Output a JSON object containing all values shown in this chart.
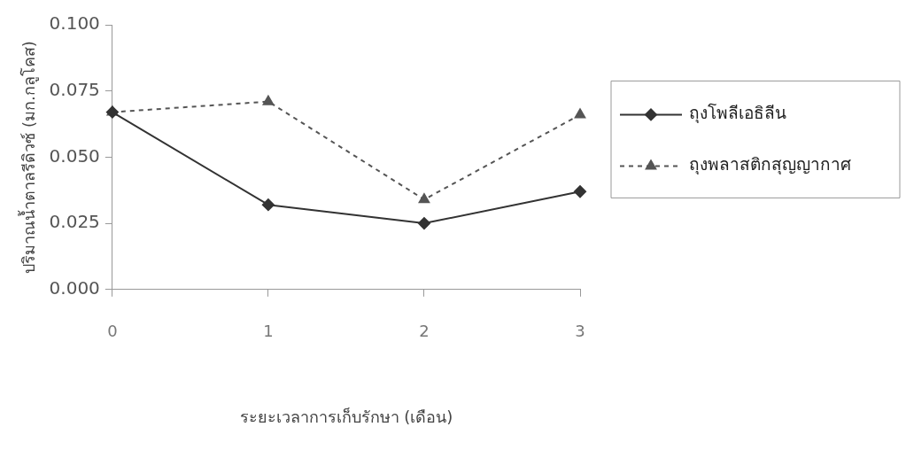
{
  "chart_data": {
    "type": "line",
    "xlabel": "ระยะเวลาการเก็บรักษา (เดือน)",
    "ylabel": "ปริมาณน้ำตาลรีดิวซ์ (มก.กลูโคส)",
    "categories": [
      "0",
      "1",
      "2",
      "3"
    ],
    "series": [
      {
        "name": "ถุงโพลีเอธิลีน",
        "color": "#333333",
        "values": [
          0.067,
          0.032,
          0.025,
          0.037
        ],
        "marker": "diamond",
        "line_style": "solid"
      },
      {
        "name": "ถุงพลาสติกสุญญากาศ",
        "color": "#555555",
        "values": [
          0.067,
          0.071,
          0.034,
          0.066
        ],
        "marker": "triangle",
        "line_style": "dashed"
      }
    ],
    "ylim": [
      0,
      0.1
    ],
    "yticks": [
      {
        "value": 0,
        "label": "0.000"
      },
      {
        "value": 0.025,
        "label": "0.025"
      },
      {
        "value": 0.05,
        "label": "0.050"
      },
      {
        "value": 0.075,
        "label": "0.075"
      },
      {
        "value": 0.1,
        "label": "0.100"
      }
    ],
    "legend": "right"
  }
}
